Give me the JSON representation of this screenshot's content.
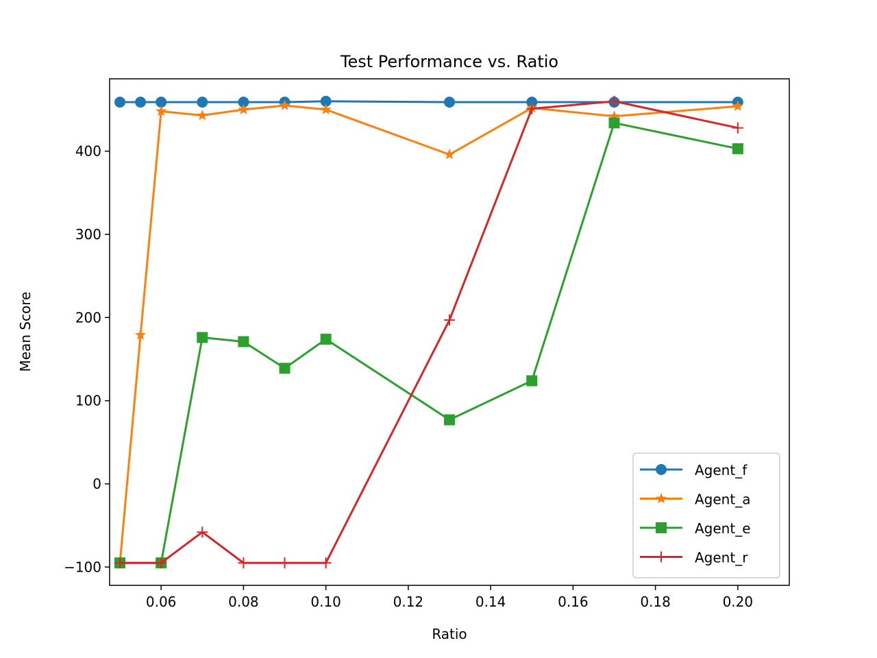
{
  "chart_data": {
    "type": "line",
    "title": "Test Performance vs. Ratio",
    "xlabel": "Ratio",
    "ylabel": "Mean Score",
    "xlim": [
      0.0475,
      0.2125
    ],
    "ylim": [
      -122,
      487
    ],
    "xticks": [
      0.06,
      0.08,
      0.1,
      0.12,
      0.14,
      0.16,
      0.18,
      0.2
    ],
    "xtick_labels": [
      "0.06",
      "0.08",
      "0.10",
      "0.12",
      "0.14",
      "0.16",
      "0.18",
      "0.20"
    ],
    "yticks": [
      -100,
      0,
      100,
      200,
      300,
      400
    ],
    "ytick_labels": [
      "−100",
      "0",
      "100",
      "200",
      "300",
      "400"
    ],
    "grid": false,
    "legend_position": "lower-right",
    "series": [
      {
        "name": "Agent_f",
        "color": "#1f77b4",
        "marker": "circle",
        "x": [
          0.05,
          0.055,
          0.06,
          0.07,
          0.08,
          0.09,
          0.1,
          0.13,
          0.15,
          0.17,
          0.2
        ],
        "y": [
          459,
          459,
          459,
          459,
          459,
          459,
          460,
          459,
          459,
          459,
          459
        ]
      },
      {
        "name": "Agent_a",
        "color": "#ff7f0e",
        "marker": "star",
        "x": [
          0.05,
          0.055,
          0.06,
          0.07,
          0.08,
          0.09,
          0.1,
          0.13,
          0.15,
          0.17,
          0.2
        ],
        "y": [
          -95,
          179,
          448,
          443,
          450,
          455,
          450,
          396,
          452,
          442,
          454
        ]
      },
      {
        "name": "Agent_e",
        "color": "#2ca02c",
        "marker": "square",
        "x": [
          0.05,
          0.06,
          0.07,
          0.08,
          0.09,
          0.1,
          0.13,
          0.15,
          0.17,
          0.2
        ],
        "y": [
          -95,
          -95,
          176,
          171,
          139,
          174,
          77,
          124,
          434,
          403
        ]
      },
      {
        "name": "Agent_r",
        "color": "#d62728",
        "marker": "plus",
        "x": [
          0.05,
          0.06,
          0.07,
          0.08,
          0.09,
          0.1,
          0.13,
          0.15,
          0.17,
          0.2
        ],
        "y": [
          -95,
          -95,
          -58,
          -95,
          -95,
          -95,
          197,
          451,
          460,
          428
        ]
      }
    ]
  }
}
